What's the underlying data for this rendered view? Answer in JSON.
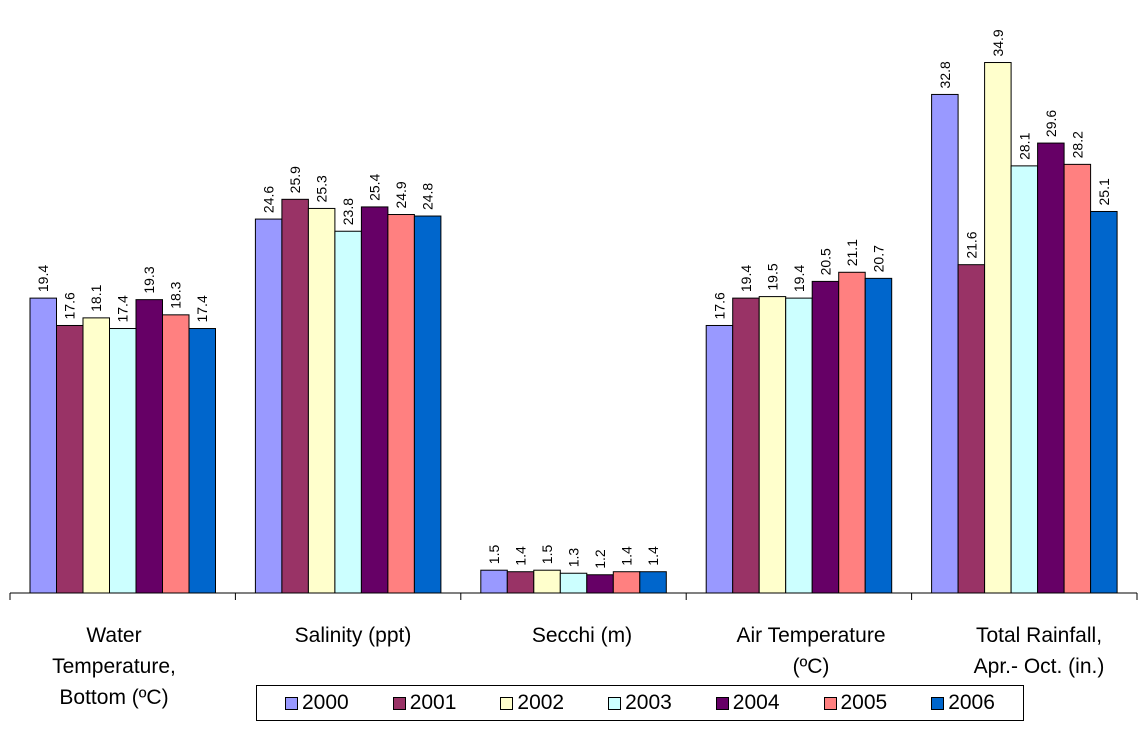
{
  "chart_data": {
    "type": "bar",
    "categories": [
      "Water Temperature, Bottom (ºC)",
      "Salinity (ppt)",
      "Secchi (m)",
      "Air Temperature (ºC)",
      "Total Rainfall, Apr.- Oct. (in.)"
    ],
    "category_lines": [
      [
        "Water",
        "Temperature,",
        "Bottom (ºC)"
      ],
      [
        "Salinity (ppt)"
      ],
      [
        "Secchi (m)"
      ],
      [
        "Air Temperature",
        "(ºC)"
      ],
      [
        "Total Rainfall,",
        "Apr.- Oct. (in.)"
      ]
    ],
    "series": [
      {
        "name": "2000",
        "color": "#9999ff",
        "values": [
          19.4,
          24.6,
          1.5,
          17.6,
          32.8
        ]
      },
      {
        "name": "2001",
        "color": "#993366",
        "values": [
          17.6,
          25.9,
          1.4,
          19.4,
          21.6
        ]
      },
      {
        "name": "2002",
        "color": "#ffffcc",
        "values": [
          18.1,
          25.3,
          1.5,
          19.5,
          34.9
        ]
      },
      {
        "name": "2003",
        "color": "#ccffff",
        "values": [
          17.4,
          23.8,
          1.3,
          19.4,
          28.1
        ]
      },
      {
        "name": "2004",
        "color": "#660066",
        "values": [
          19.3,
          25.4,
          1.2,
          20.5,
          29.6
        ]
      },
      {
        "name": "2005",
        "color": "#ff8080",
        "values": [
          18.3,
          24.9,
          1.4,
          21.1,
          28.2
        ]
      },
      {
        "name": "2006",
        "color": "#0066cc",
        "values": [
          17.4,
          24.8,
          1.4,
          20.7,
          25.1
        ]
      }
    ],
    "ylim": [
      0,
      36
    ],
    "grid": false,
    "legend_position": "bottom",
    "data_labels": true
  }
}
